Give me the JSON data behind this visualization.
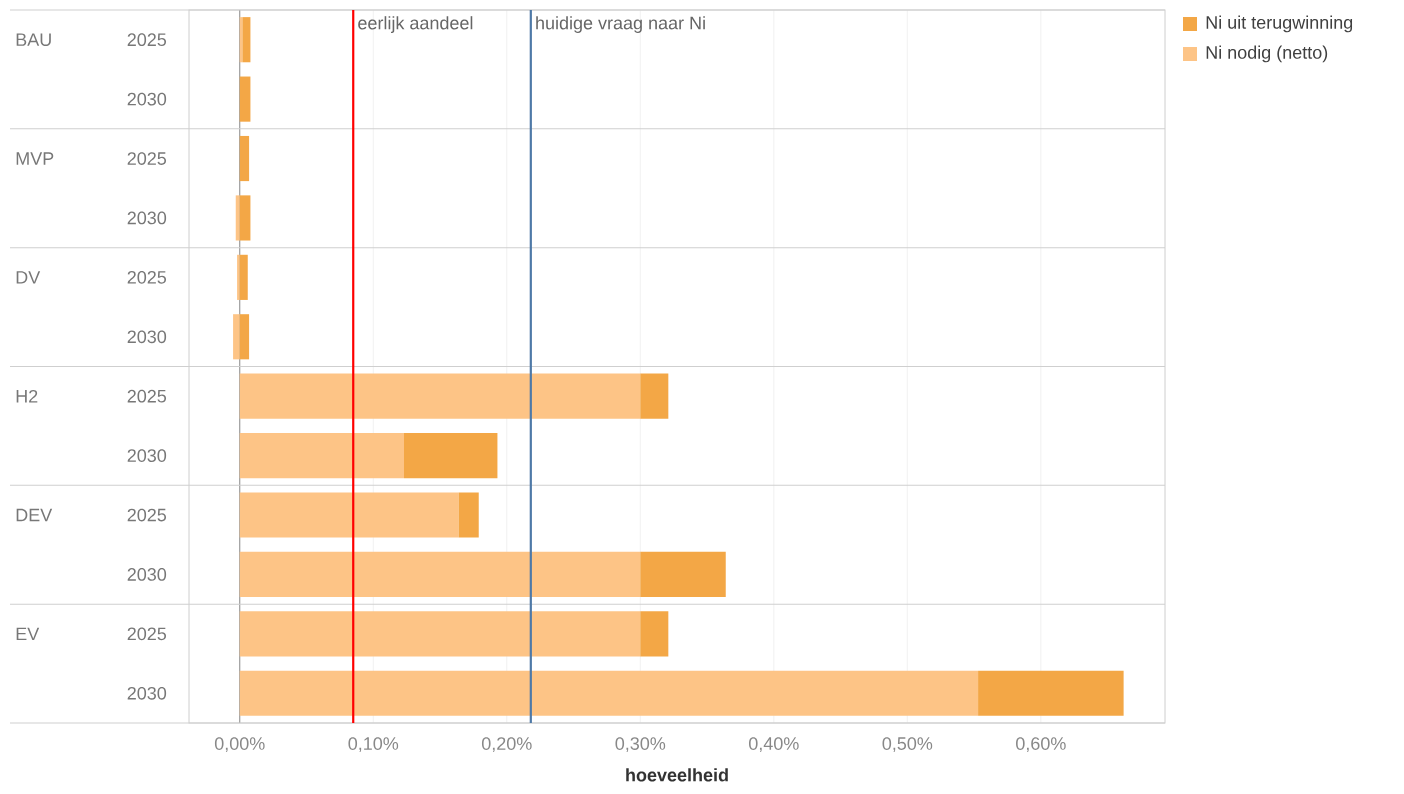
{
  "chart_data": {
    "type": "bar",
    "orientation": "horizontal",
    "stacked": true,
    "xlabel": "hoeveelheid",
    "categories": [
      "2025",
      "2030",
      "2025",
      "2030",
      "2025",
      "2030",
      "2025",
      "2030",
      "2025",
      "2030",
      "2025",
      "2030"
    ],
    "annotations": [
      "BAU",
      "MVP",
      "DV",
      "H2",
      "DEV",
      "EV"
    ],
    "series": [
      {
        "name": "Ni nodig (netto)",
        "color": "#fdc486",
        "values": [
          0.002,
          0,
          0,
          -0.003,
          -0.002,
          -0.005,
          0.3,
          0.123,
          0.164,
          0.3,
          0.3,
          0.553
        ]
      },
      {
        "name": "Ni uit terugwinning",
        "color": "#f3a746",
        "values": [
          0.006,
          0.008,
          0.007,
          0.008,
          0.006,
          0.007,
          0.021,
          0.07,
          0.015,
          0.064,
          0.021,
          0.109
        ]
      }
    ],
    "xlim": [
      -0.038,
      0.693
    ],
    "xticks": [
      {
        "value": 0,
        "label": "0,00%"
      },
      {
        "value": 0.1,
        "label": "0,10%"
      },
      {
        "value": 0.2,
        "label": "0,20%"
      },
      {
        "value": 0.3,
        "label": "0,30%"
      },
      {
        "value": 0.4,
        "label": "0,40%"
      },
      {
        "value": 0.5,
        "label": "0,50%"
      },
      {
        "value": 0.6,
        "label": "0,60%"
      }
    ],
    "ref_lines": [
      {
        "axis": "x",
        "value": 0.085,
        "label": "eerlijk aandeel",
        "color": "#ff0000"
      },
      {
        "axis": "x",
        "value": 0.218,
        "label": "huidige vraag naar Ni",
        "color": "#4e79a7"
      }
    ],
    "grid": "x",
    "legend": "right"
  }
}
